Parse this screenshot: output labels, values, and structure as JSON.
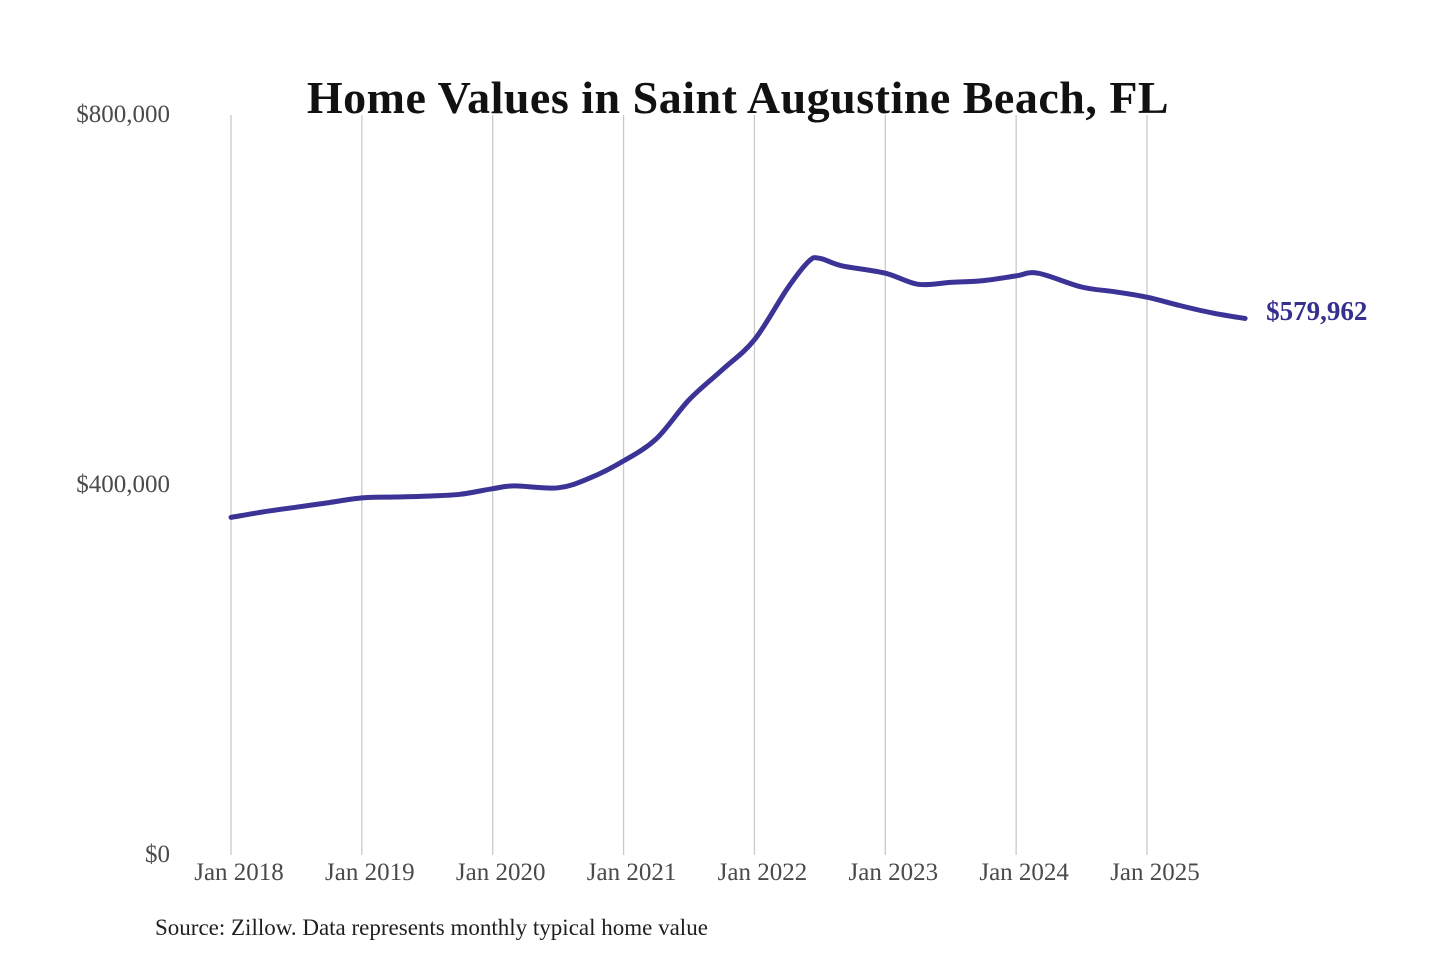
{
  "source_note": "Source: Zillow. Data represents monthly typical home value",
  "colors": {
    "line": "#3b3496",
    "end_label": "#352f8e",
    "grid": "#c9c9c9",
    "title": "#111111",
    "tick_text": "#4a4a4a",
    "source_text": "#1f1f1f",
    "background": "#ffffff"
  },
  "chart_data": {
    "type": "line",
    "title": "Home Values in Saint Augustine Beach, FL",
    "xlabel": "",
    "ylabel": "",
    "ylim": [
      0,
      800000
    ],
    "grid": "vertical-only",
    "legend_position": "none",
    "end_label": "$579,962",
    "end_value": 579962,
    "y_ticks": [
      {
        "value": 0,
        "label": "$0"
      },
      {
        "value": 400000,
        "label": "$400,000"
      },
      {
        "value": 800000,
        "label": "$800,000"
      }
    ],
    "x_ticks": [
      "Jan 2018",
      "Jan 2019",
      "Jan 2020",
      "Jan 2021",
      "Jan 2022",
      "Jan 2023",
      "Jan 2024",
      "Jan 2025"
    ],
    "series": [
      {
        "name": "Typical home value",
        "points": [
          [
            "2018-01",
            365000
          ],
          [
            "2018-04",
            371000
          ],
          [
            "2018-07",
            376000
          ],
          [
            "2018-10",
            381000
          ],
          [
            "2019-01",
            386000
          ],
          [
            "2019-04",
            387000
          ],
          [
            "2019-07",
            388000
          ],
          [
            "2019-10",
            390000
          ],
          [
            "2020-01",
            396000
          ],
          [
            "2020-03",
            399000
          ],
          [
            "2020-07",
            397000
          ],
          [
            "2020-10",
            408000
          ],
          [
            "2021-01",
            426000
          ],
          [
            "2021-04",
            450000
          ],
          [
            "2021-07",
            492000
          ],
          [
            "2021-10",
            524000
          ],
          [
            "2022-01",
            557000
          ],
          [
            "2022-04",
            612000
          ],
          [
            "2022-06",
            642000
          ],
          [
            "2022-07",
            645000
          ],
          [
            "2022-09",
            637000
          ],
          [
            "2023-01",
            629000
          ],
          [
            "2023-04",
            617000
          ],
          [
            "2023-07",
            619000
          ],
          [
            "2023-10",
            621000
          ],
          [
            "2024-01",
            626000
          ],
          [
            "2024-03",
            629000
          ],
          [
            "2024-07",
            614000
          ],
          [
            "2024-10",
            609000
          ],
          [
            "2025-01",
            603000
          ],
          [
            "2025-04",
            594000
          ],
          [
            "2025-07",
            586000
          ],
          [
            "2025-10",
            579962
          ]
        ]
      }
    ]
  }
}
